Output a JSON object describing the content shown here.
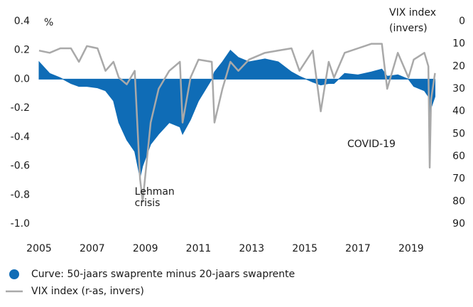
{
  "chart_data": {
    "type": "area-line",
    "ylabel": "%",
    "y2label": [
      "VIX index",
      "(invers)"
    ],
    "x": [
      2005.0,
      2005.4,
      2005.8,
      2006.2,
      2006.5,
      2006.8,
      2007.2,
      2007.5,
      2007.8,
      2008.0,
      2008.3,
      2008.6,
      2008.8,
      2008.9,
      2009.2,
      2009.5,
      2009.9,
      2010.3,
      2010.4,
      2010.7,
      2011.0,
      2011.5,
      2011.6,
      2011.9,
      2012.2,
      2012.5,
      2012.9,
      2013.5,
      2014.0,
      2014.5,
      2014.8,
      2015.3,
      2015.6,
      2015.9,
      2016.1,
      2016.5,
      2017.0,
      2017.5,
      2017.9,
      2018.1,
      2018.5,
      2018.9,
      2019.1,
      2019.5,
      2019.65,
      2019.7,
      2019.75,
      2019.9
    ],
    "series": [
      {
        "name": "Curve: 50-jaars swaprente minus 20-jaars swaprente",
        "color": "#0f6cb6",
        "kind": "area",
        "values": [
          0.12,
          0.04,
          0.01,
          -0.03,
          -0.05,
          -0.05,
          -0.06,
          -0.08,
          -0.15,
          -0.3,
          -0.42,
          -0.5,
          -0.68,
          -0.6,
          -0.45,
          -0.38,
          -0.3,
          -0.33,
          -0.38,
          -0.28,
          -0.15,
          0.0,
          0.05,
          0.12,
          0.2,
          0.15,
          0.12,
          0.14,
          0.12,
          0.05,
          0.02,
          -0.02,
          -0.04,
          -0.03,
          -0.03,
          0.04,
          0.03,
          0.05,
          0.07,
          0.02,
          0.03,
          0.0,
          -0.05,
          -0.08,
          -0.12,
          -0.3,
          -0.2,
          -0.12
        ]
      },
      {
        "name": "VIX index (r-as, invers)",
        "color": "#a9a9a9",
        "kind": "line",
        "axis": "y2",
        "values": [
          13,
          14,
          12,
          12,
          18,
          11,
          12,
          22,
          18,
          25,
          28,
          22,
          70,
          80,
          45,
          30,
          22,
          18,
          45,
          25,
          17,
          18,
          45,
          30,
          18,
          22,
          17,
          14,
          13,
          12,
          22,
          13,
          40,
          18,
          25,
          14,
          12,
          10,
          10,
          30,
          14,
          25,
          17,
          14,
          20,
          65,
          35,
          23
        ]
      }
    ],
    "xlim": [
      2005,
      2020.1
    ],
    "xticks": [
      2005,
      2007,
      2009,
      2011,
      2013,
      2015,
      2017,
      2019
    ],
    "ylim": [
      -1.0,
      0.4
    ],
    "yticks": [
      0.4,
      0.2,
      {
        "value": 0,
        "label": "0.0"
      },
      -0.2,
      -0.4,
      -0.6,
      -0.8,
      {
        "value": -1.0,
        "label": "-1.0"
      }
    ],
    "y2lim": [
      0,
      90
    ],
    "y2_inverted": true,
    "y2ticks": [
      0,
      10,
      20,
      30,
      40,
      50,
      60,
      70,
      80,
      90
    ],
    "annotations": [
      {
        "text": [
          "Lehman",
          "crisis"
        ],
        "x": 2009.0,
        "y": -0.78
      },
      {
        "text": [
          "COVID-19"
        ],
        "x": 2017.0,
        "y": -0.45
      }
    ],
    "grid": false
  }
}
